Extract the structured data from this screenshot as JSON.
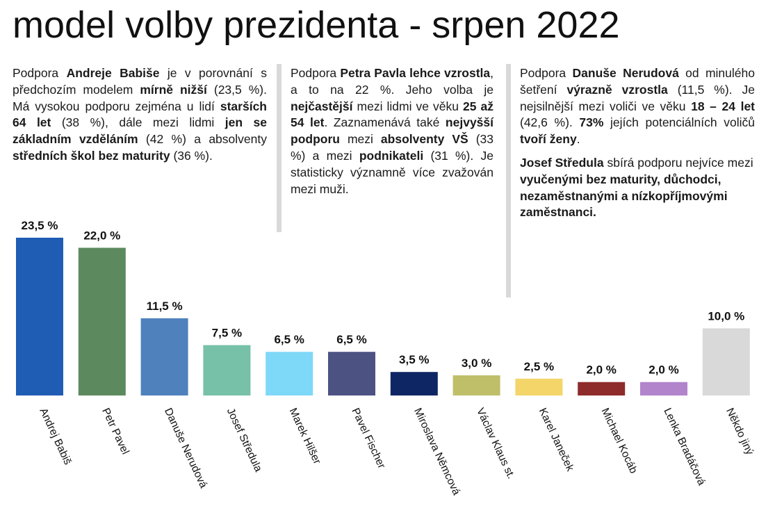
{
  "title": "model volby prezidenta - srpen 2022",
  "notes": {
    "babis": [
      {
        "t": "Podpora "
      },
      {
        "t": "Andreje Babiše",
        "b": true
      },
      {
        "t": " je v porovnání s předchozím modelem "
      },
      {
        "t": "mírně nižší",
        "b": true
      },
      {
        "t": " (23,5 %). Má vysokou podporu zejména u lidí "
      },
      {
        "t": "starších 64 let",
        "b": true
      },
      {
        "t": " (38 %), dále mezi lidmi "
      },
      {
        "t": "jen se základním vzděláním",
        "b": true
      },
      {
        "t": " (42 %) a absolventy "
      },
      {
        "t": "středních škol bez maturity",
        "b": true
      },
      {
        "t": " (36 %)."
      }
    ],
    "pavel": [
      {
        "t": "Podpora "
      },
      {
        "t": "Petra Pavla lehce vzrostla",
        "b": true
      },
      {
        "t": ", a to na 22 %. Jeho volba je "
      },
      {
        "t": "nejčastější",
        "b": true
      },
      {
        "t": " mezi lidmi ve věku "
      },
      {
        "t": "25 až 54 let",
        "b": true
      },
      {
        "t": ". Zaznamenává také "
      },
      {
        "t": "nejvyšší podporu",
        "b": true
      },
      {
        "t": " mezi "
      },
      {
        "t": "absolventy VŠ",
        "b": true
      },
      {
        "t": " (33 %) a mezi "
      },
      {
        "t": "podnikateli",
        "b": true
      },
      {
        "t": " (31 %). Je statisticky významně více zvažován mezi muži."
      }
    ],
    "nerudova": [
      {
        "t": "Podpora "
      },
      {
        "t": "Danuše Nerudová",
        "b": true
      },
      {
        "t": " od minulého šetření "
      },
      {
        "t": "výrazně vzrostla",
        "b": true
      },
      {
        "t": " (11,5 %). Je nejsilnější mezi voliči ve věku "
      },
      {
        "t": "18 – 24 let",
        "b": true
      },
      {
        "t": " (42,6 %). "
      },
      {
        "t": "73%",
        "b": true
      },
      {
        "t": " jejích potenciálních voličů "
      },
      {
        "t": "tvoří ženy",
        "b": true
      },
      {
        "t": "."
      }
    ],
    "stredula": [
      {
        "t": "Josef Středula",
        "b": true
      },
      {
        "t": " sbírá podporu nejvíce mezi "
      },
      {
        "t": "vyučenými bez maturity, důchodci, nezaměstnanými a nízkopříjmovými zaměstnanci.",
        "b": true
      }
    ]
  },
  "chart_data": {
    "type": "bar",
    "title": "model volby prezidenta - srpen 2022",
    "xlabel": "",
    "ylabel": "",
    "ylim": [
      0,
      25
    ],
    "grid": false,
    "categories": [
      "Andrej Babiš",
      "Petr Pavel",
      "Danuše Nerudová",
      "Josef Středula",
      "Marek Hilšer",
      "Pavel Fischer",
      "Miroslava Němcová",
      "Václav Klaus st.",
      "Karel Janeček",
      "Michael Kocáb",
      "Lenka Bradáčová",
      "Někdo jiný"
    ],
    "values": [
      23.5,
      22.0,
      11.5,
      7.5,
      6.5,
      6.5,
      3.5,
      3.0,
      2.5,
      2.0,
      2.0,
      10.0
    ],
    "value_labels": [
      "23,5 %",
      "22,0 %",
      "11,5 %",
      "7,5 %",
      "6,5 %",
      "6,5 %",
      "3,5 %",
      "3,0 %",
      "2,5 %",
      "2,0 %",
      "2,0 %",
      "10,0 %"
    ],
    "colors": [
      "#1f5cb4",
      "#5c8a5e",
      "#4f81bd",
      "#76c1a8",
      "#7ed8f7",
      "#4c5282",
      "#0e2764",
      "#bfbf6a",
      "#f4d569",
      "#8e2b2b",
      "#b284cc",
      "#d9d9d9"
    ]
  }
}
